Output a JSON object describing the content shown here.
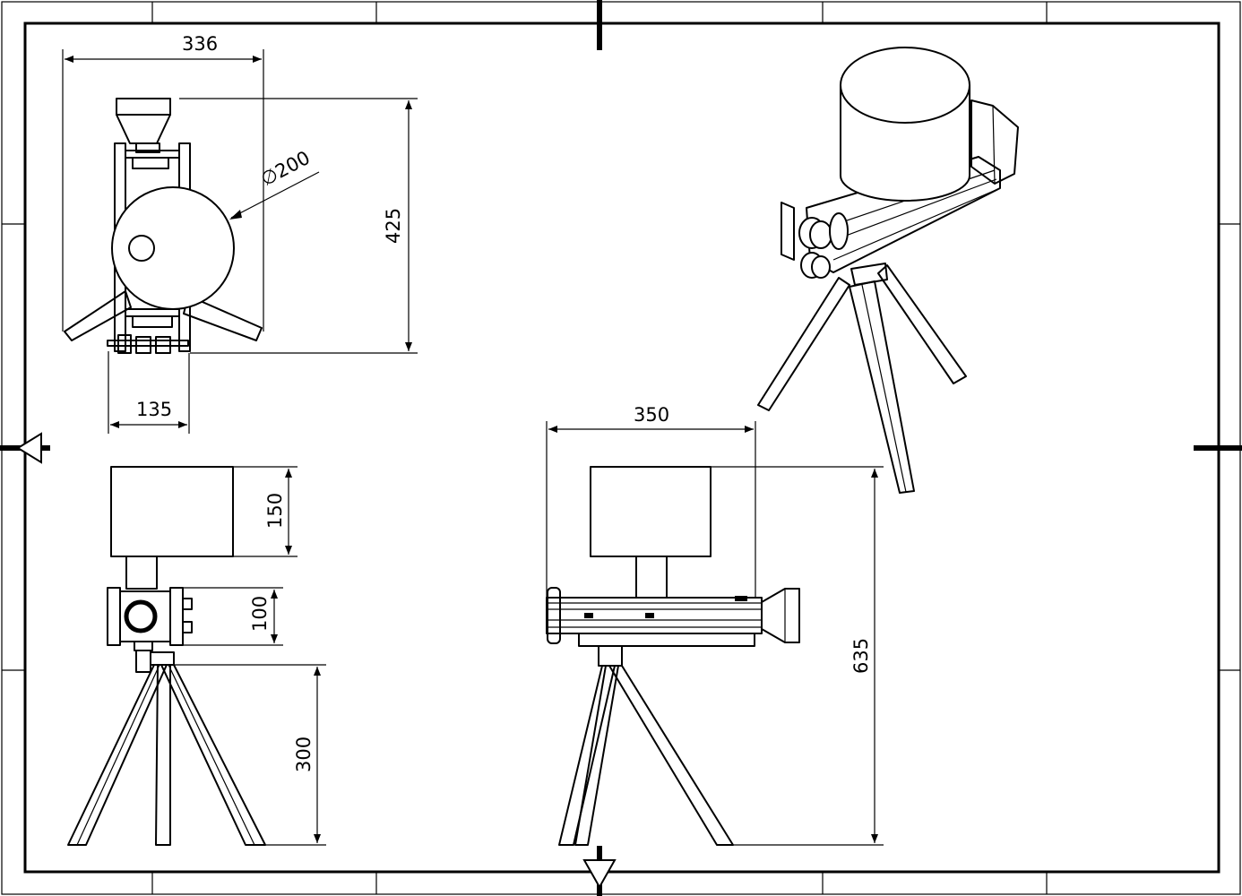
{
  "drawing": {
    "dimensions": {
      "top_view_width": "336",
      "top_view_diameter": "∅200",
      "top_view_height": "425",
      "top_view_base": "135",
      "side_box_height": "150",
      "side_mid_height": "100",
      "side_tripod_height": "300",
      "front_width": "350",
      "front_total_height": "635"
    }
  },
  "colors": {
    "line": "#000000",
    "paper": "#ffffff"
  }
}
